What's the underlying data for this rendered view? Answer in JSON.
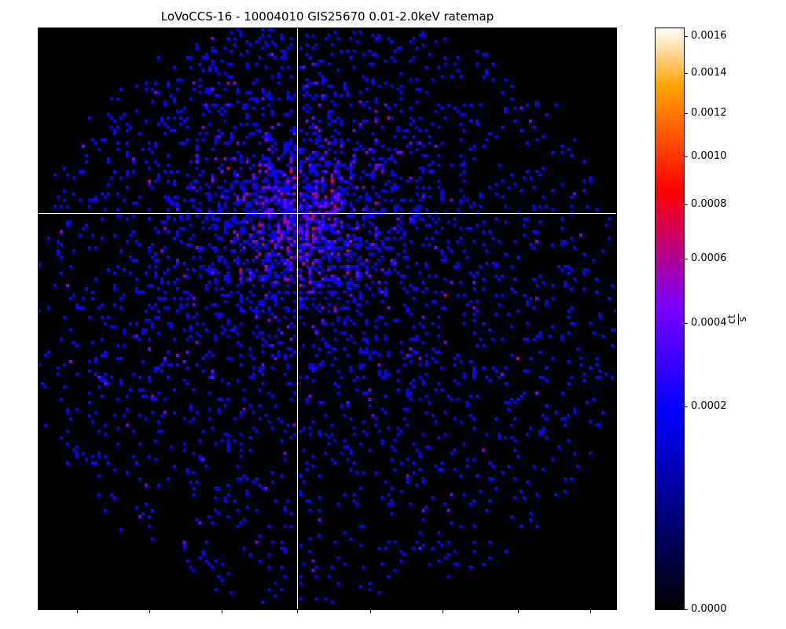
{
  "chart_data": {
    "type": "heatmap",
    "title": "LoVoCCS-16 - 10004010 GIS25670 0.01-2.0keV ratemap",
    "grid_size": [
      184,
      184
    ],
    "colormap": "gnuplot2",
    "scale": "sqrt",
    "colorbar": {
      "label_num": "ct",
      "label_den": "s",
      "range": [
        0.0,
        0.00165
      ],
      "ticks": [
        {
          "value": 0.0,
          "label": "0.0000"
        },
        {
          "value": 0.0002,
          "label": "0.0002"
        },
        {
          "value": 0.0004,
          "label": "0.0004"
        },
        {
          "value": 0.0006,
          "label": "0.0006"
        },
        {
          "value": 0.0008,
          "label": "0.0008"
        },
        {
          "value": 0.001,
          "label": "0.0010"
        },
        {
          "value": 0.0012,
          "label": "0.0012"
        },
        {
          "value": 0.0014,
          "label": "0.0014"
        },
        {
          "value": 0.0016,
          "label": "0.0016"
        }
      ]
    },
    "pixel_rate_levels": [
      0.0,
      0.00021,
      0.00042,
      0.00063,
      0.00084
    ],
    "crosshair_cell": {
      "col": 82,
      "row": 58
    },
    "emission_center_cell": {
      "col": 82,
      "row": 60
    },
    "x_tick_cells": [
      12,
      35,
      58,
      82,
      105,
      128,
      152,
      175
    ],
    "grid": false,
    "colors": {
      "background": "#000000",
      "crosshair": "#ffffff"
    }
  }
}
